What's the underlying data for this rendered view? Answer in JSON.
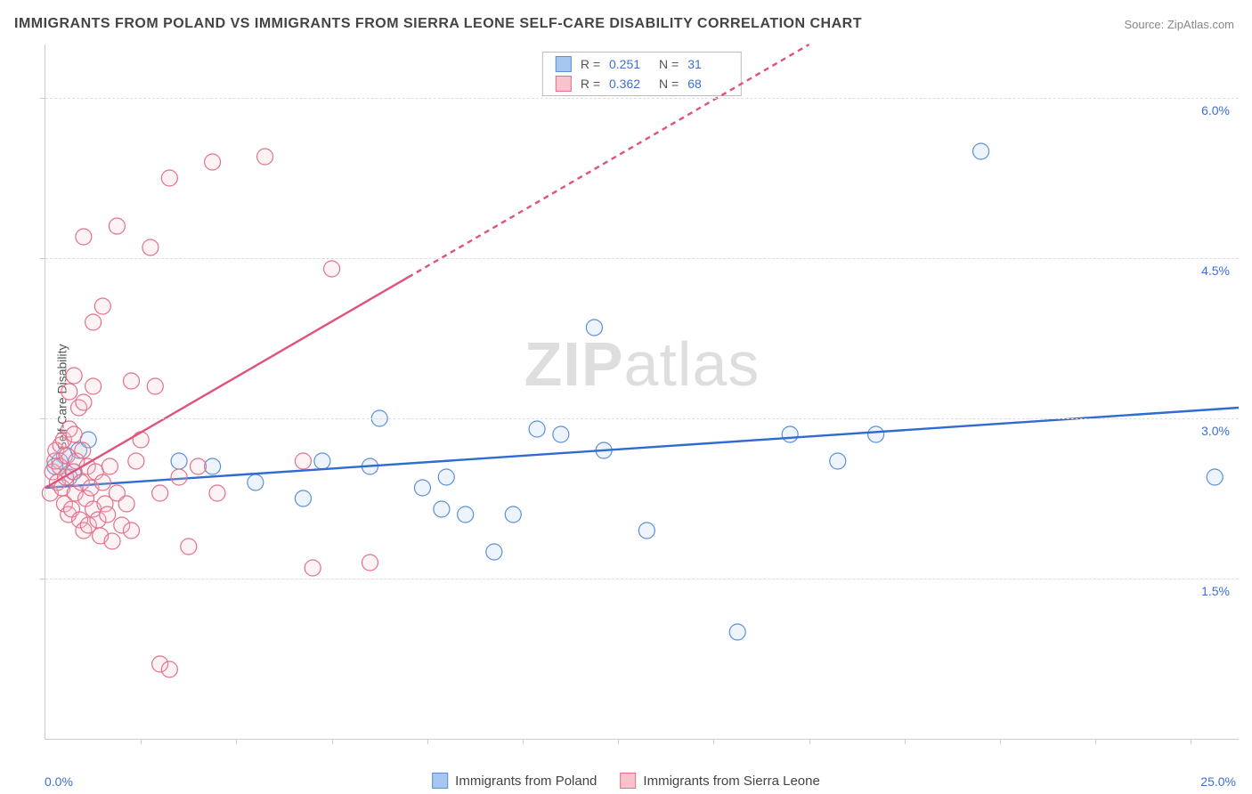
{
  "title": "IMMIGRANTS FROM POLAND VS IMMIGRANTS FROM SIERRA LEONE SELF-CARE DISABILITY CORRELATION CHART",
  "source": "Source: ZipAtlas.com",
  "watermark_a": "ZIP",
  "watermark_b": "atlas",
  "y_axis_label": "Self-Care Disability",
  "chart": {
    "type": "scatter",
    "xlim": [
      0,
      25
    ],
    "ylim": [
      0,
      6.5
    ],
    "x_tick_min_label": "0.0%",
    "x_tick_max_label": "25.0%",
    "x_ticks_minor": [
      2,
      4,
      6,
      8,
      10,
      12,
      14,
      16,
      18,
      20,
      22,
      24
    ],
    "y_ticks": [
      {
        "v": 1.5,
        "label": "1.5%"
      },
      {
        "v": 3.0,
        "label": "3.0%"
      },
      {
        "v": 4.5,
        "label": "4.5%"
      },
      {
        "v": 6.0,
        "label": "6.0%"
      }
    ],
    "grid_color": "#dddddd",
    "axis_color": "#cccccc",
    "background_color": "#ffffff",
    "marker_radius": 9,
    "marker_stroke_width": 1.2,
    "marker_fill_opacity": 0.2,
    "trend_line_width": 2.4,
    "trend_dash": "6,5"
  },
  "series": [
    {
      "name": "Immigrants from Poland",
      "color_fill": "#a6c8f0",
      "color_stroke": "#5b8fd6",
      "trend_color": "#2f6bd0",
      "R": "0.251",
      "N": "31",
      "trend": {
        "x1": 0,
        "y1": 2.35,
        "x2": 25,
        "y2": 3.1,
        "dash_after_x": 25
      },
      "points": [
        [
          0.2,
          2.55
        ],
        [
          0.3,
          2.6
        ],
        [
          0.4,
          2.65
        ],
        [
          0.5,
          2.45
        ],
        [
          0.6,
          2.5
        ],
        [
          0.7,
          2.7
        ],
        [
          0.9,
          2.8
        ],
        [
          2.8,
          2.6
        ],
        [
          3.5,
          2.55
        ],
        [
          4.4,
          2.4
        ],
        [
          5.4,
          2.25
        ],
        [
          5.8,
          2.6
        ],
        [
          6.8,
          2.55
        ],
        [
          7.0,
          3.0
        ],
        [
          7.9,
          2.35
        ],
        [
          8.4,
          2.45
        ],
        [
          8.3,
          2.15
        ],
        [
          8.8,
          2.1
        ],
        [
          9.4,
          1.75
        ],
        [
          9.8,
          2.1
        ],
        [
          10.3,
          2.9
        ],
        [
          10.8,
          2.85
        ],
        [
          11.5,
          3.85
        ],
        [
          11.7,
          2.7
        ],
        [
          12.6,
          1.95
        ],
        [
          14.5,
          1.0
        ],
        [
          15.6,
          2.85
        ],
        [
          16.6,
          2.6
        ],
        [
          17.4,
          2.85
        ],
        [
          19.6,
          5.5
        ],
        [
          24.5,
          2.45
        ]
      ]
    },
    {
      "name": "Immigrants from Sierra Leone",
      "color_fill": "#f7c4ce",
      "color_stroke": "#e46f8a",
      "trend_color": "#e0527a",
      "R": "0.362",
      "N": "68",
      "trend": {
        "x1": 0,
        "y1": 2.35,
        "x2": 16,
        "y2": 6.5,
        "dash_after_x": 7.6
      },
      "points": [
        [
          0.1,
          2.3
        ],
        [
          0.15,
          2.5
        ],
        [
          0.2,
          2.6
        ],
        [
          0.22,
          2.7
        ],
        [
          0.25,
          2.4
        ],
        [
          0.3,
          2.55
        ],
        [
          0.32,
          2.75
        ],
        [
          0.35,
          2.35
        ],
        [
          0.38,
          2.8
        ],
        [
          0.4,
          2.2
        ],
        [
          0.42,
          2.45
        ],
        [
          0.45,
          2.65
        ],
        [
          0.48,
          2.1
        ],
        [
          0.5,
          2.9
        ],
        [
          0.55,
          2.15
        ],
        [
          0.58,
          2.5
        ],
        [
          0.6,
          2.85
        ],
        [
          0.62,
          2.3
        ],
        [
          0.65,
          2.6
        ],
        [
          0.7,
          3.1
        ],
        [
          0.72,
          2.05
        ],
        [
          0.75,
          2.4
        ],
        [
          0.78,
          2.7
        ],
        [
          0.8,
          1.95
        ],
        [
          0.85,
          2.25
        ],
        [
          0.88,
          2.55
        ],
        [
          0.9,
          2.0
        ],
        [
          0.95,
          2.35
        ],
        [
          1.0,
          2.15
        ],
        [
          1.05,
          2.5
        ],
        [
          1.1,
          2.05
        ],
        [
          1.15,
          1.9
        ],
        [
          1.2,
          2.4
        ],
        [
          1.25,
          2.2
        ],
        [
          1.3,
          2.1
        ],
        [
          1.35,
          2.55
        ],
        [
          1.4,
          1.85
        ],
        [
          1.5,
          2.3
        ],
        [
          1.6,
          2.0
        ],
        [
          1.7,
          2.2
        ],
        [
          1.8,
          1.95
        ],
        [
          1.9,
          2.6
        ],
        [
          0.6,
          3.4
        ],
        [
          0.8,
          3.15
        ],
        [
          1.0,
          3.3
        ],
        [
          1.8,
          3.35
        ],
        [
          0.5,
          3.25
        ],
        [
          1.0,
          3.9
        ],
        [
          1.5,
          4.8
        ],
        [
          0.8,
          4.7
        ],
        [
          2.2,
          4.6
        ],
        [
          2.3,
          3.3
        ],
        [
          2.4,
          2.3
        ],
        [
          2.6,
          5.25
        ],
        [
          2.8,
          2.45
        ],
        [
          3.0,
          1.8
        ],
        [
          3.2,
          2.55
        ],
        [
          3.5,
          5.4
        ],
        [
          3.6,
          2.3
        ],
        [
          4.6,
          5.45
        ],
        [
          5.4,
          2.6
        ],
        [
          5.6,
          1.6
        ],
        [
          6.0,
          4.4
        ],
        [
          6.8,
          1.65
        ],
        [
          2.4,
          0.7
        ],
        [
          2.6,
          0.65
        ],
        [
          2.0,
          2.8
        ],
        [
          1.2,
          4.05
        ]
      ]
    }
  ],
  "legend_top": {
    "r_label": "R  =",
    "n_label": "N  ="
  },
  "legend_bottom": {
    "items": [
      "Immigrants from Poland",
      "Immigrants from Sierra Leone"
    ]
  }
}
